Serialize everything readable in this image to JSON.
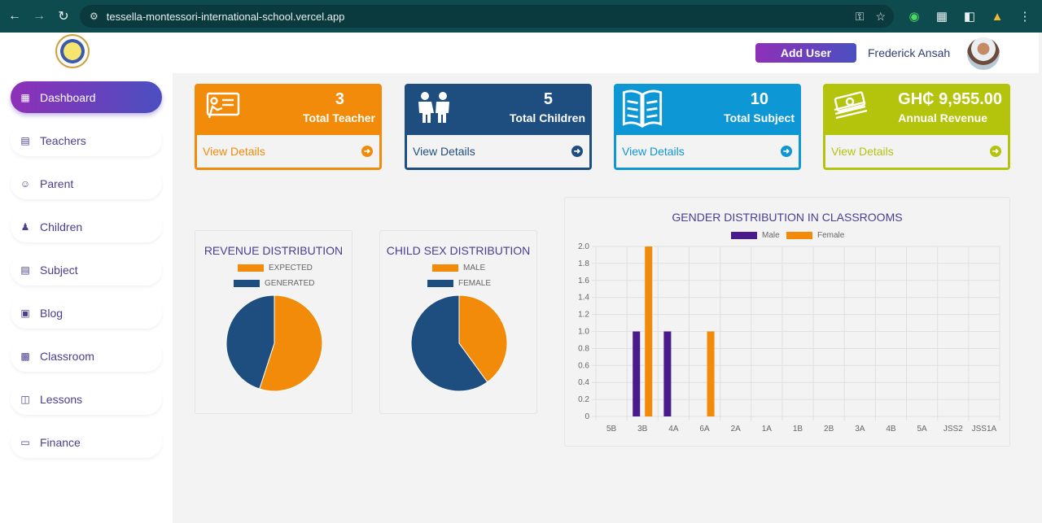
{
  "browser": {
    "url": "tessella-montessori-international-school.vercel.app"
  },
  "header": {
    "add_user_label": "Add User",
    "user_name": "Frederick Ansah"
  },
  "sidebar": {
    "items": [
      {
        "label": "Dashboard",
        "icon": "dashboard-icon"
      },
      {
        "label": "Teachers",
        "icon": "teachers-icon"
      },
      {
        "label": "Parent",
        "icon": "parent-icon"
      },
      {
        "label": "Children",
        "icon": "children-icon"
      },
      {
        "label": "Subject",
        "icon": "subject-icon"
      },
      {
        "label": "Blog",
        "icon": "blog-icon"
      },
      {
        "label": "Classroom",
        "icon": "classroom-icon"
      },
      {
        "label": "Lessons",
        "icon": "lessons-icon"
      },
      {
        "label": "Finance",
        "icon": "finance-icon"
      }
    ]
  },
  "cards": [
    {
      "value": "3",
      "label": "Total Teacher",
      "link": "View Details",
      "color": "#f28a0a",
      "icon": "teacher-board-icon"
    },
    {
      "value": "5",
      "label": "Total Children",
      "link": "View Details",
      "color": "#1d4e7f",
      "icon": "children-pair-icon"
    },
    {
      "value": "10",
      "label": "Total Subject",
      "link": "View Details",
      "color": "#0d97d4",
      "icon": "book-icon"
    },
    {
      "value": "GH₵ 9,955.00",
      "label": "Annual Revenue",
      "link": "View Details",
      "color": "#b4c40c",
      "icon": "money-stack-icon"
    }
  ],
  "revenue_chart": {
    "title": "REVENUE DISTRIBUTION",
    "legend": [
      "EXPECTED",
      "GENERATED"
    ]
  },
  "sex_chart": {
    "title": "CHILD SEX DISTRIBUTION",
    "legend": [
      "MALE",
      "FEMALE"
    ]
  },
  "gender_chart_title": "GENDER DISTRIBUTION IN CLASSROOMS",
  "gender_legend": [
    "Male",
    "Female"
  ],
  "chart_data": [
    {
      "type": "pie",
      "title": "REVENUE DISTRIBUTION",
      "labels": [
        "EXPECTED",
        "GENERATED"
      ],
      "values": [
        55,
        45
      ],
      "colors": [
        "#f28a0a",
        "#1d4e7f"
      ]
    },
    {
      "type": "pie",
      "title": "CHILD SEX DISTRIBUTION",
      "labels": [
        "MALE",
        "FEMALE"
      ],
      "values": [
        40,
        60
      ],
      "colors": [
        "#f28a0a",
        "#1d4e7f"
      ]
    },
    {
      "type": "bar",
      "title": "GENDER DISTRIBUTION IN CLASSROOMS",
      "categories": [
        "5B",
        "3B",
        "4A",
        "6A",
        "2A",
        "1A",
        "1B",
        "2B",
        "3A",
        "4B",
        "5A",
        "JSS2",
        "JSS1A"
      ],
      "series": [
        {
          "name": "Male",
          "color": "#4a1a8c",
          "values": [
            0,
            1,
            1,
            0,
            0,
            0,
            0,
            0,
            0,
            0,
            0,
            0,
            0
          ]
        },
        {
          "name": "Female",
          "color": "#f28a0a",
          "values": [
            0,
            2,
            0,
            1,
            0,
            0,
            0,
            0,
            0,
            0,
            0,
            0,
            0
          ]
        }
      ],
      "ylim": [
        0,
        2.0
      ],
      "yticks": [
        "0",
        "0.2",
        "0.4",
        "0.6",
        "0.8",
        "1.0",
        "1.2",
        "1.4",
        "1.6",
        "1.8",
        "2.0"
      ]
    }
  ]
}
